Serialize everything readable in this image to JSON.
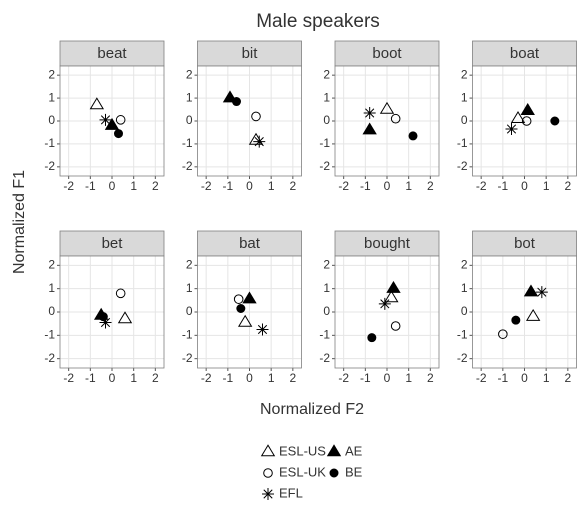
{
  "chart_data": {
    "type": "scatter",
    "title": "Male speakers",
    "x_label": "Normalized F2",
    "y_label": "Normalized F1",
    "panels": [
      "beat",
      "bit",
      "boot",
      "boat",
      "bet",
      "bat",
      "bought",
      "bot"
    ],
    "xlim": [
      -2.4,
      2.4
    ],
    "ylim": [
      -2.4,
      2.4
    ],
    "xticks": [
      -2,
      -1,
      0,
      1,
      2
    ],
    "yticks": [
      -2,
      -1,
      0,
      1,
      2
    ],
    "grid": true,
    "series": [
      {
        "name": "ESL-US",
        "marker": "open-triangle",
        "color": "#000000",
        "x": [
          -0.7,
          0.3,
          0.0,
          -0.3,
          0.6,
          -0.2,
          0.2,
          0.4
        ],
        "y": [
          0.7,
          -0.85,
          0.5,
          0.1,
          -0.3,
          -0.45,
          0.6,
          -0.2
        ]
      },
      {
        "name": "ESL-UK",
        "marker": "open-circle",
        "color": "#000000",
        "x": [
          0.4,
          0.3,
          0.4,
          0.1,
          0.4,
          -0.5,
          0.4,
          -1.0
        ],
        "y": [
          0.05,
          0.2,
          0.1,
          0.0,
          0.8,
          0.55,
          -0.6,
          -0.95
        ]
      },
      {
        "name": "EFL",
        "marker": "asterisk",
        "color": "#000000",
        "x": [
          -0.3,
          0.45,
          -0.8,
          -0.6,
          -0.3,
          0.6,
          -0.1,
          0.8
        ],
        "y": [
          0.05,
          -0.9,
          0.35,
          -0.35,
          -0.45,
          -0.75,
          0.35,
          0.85
        ]
      },
      {
        "name": "AE",
        "marker": "filled-triangle",
        "color": "#000000",
        "x": [
          0.0,
          -0.9,
          -0.8,
          0.15,
          -0.5,
          0.0,
          0.3,
          0.3
        ],
        "y": [
          -0.2,
          1.0,
          -0.4,
          0.45,
          -0.15,
          0.55,
          1.0,
          0.85
        ]
      },
      {
        "name": "BE",
        "marker": "filled-circle",
        "color": "#000000",
        "x": [
          0.3,
          -0.6,
          1.2,
          1.4,
          -0.4,
          -0.4,
          -0.7,
          -0.4
        ],
        "y": [
          -0.55,
          0.85,
          -0.65,
          0.0,
          -0.2,
          0.15,
          -1.1,
          -0.35
        ]
      }
    ]
  }
}
